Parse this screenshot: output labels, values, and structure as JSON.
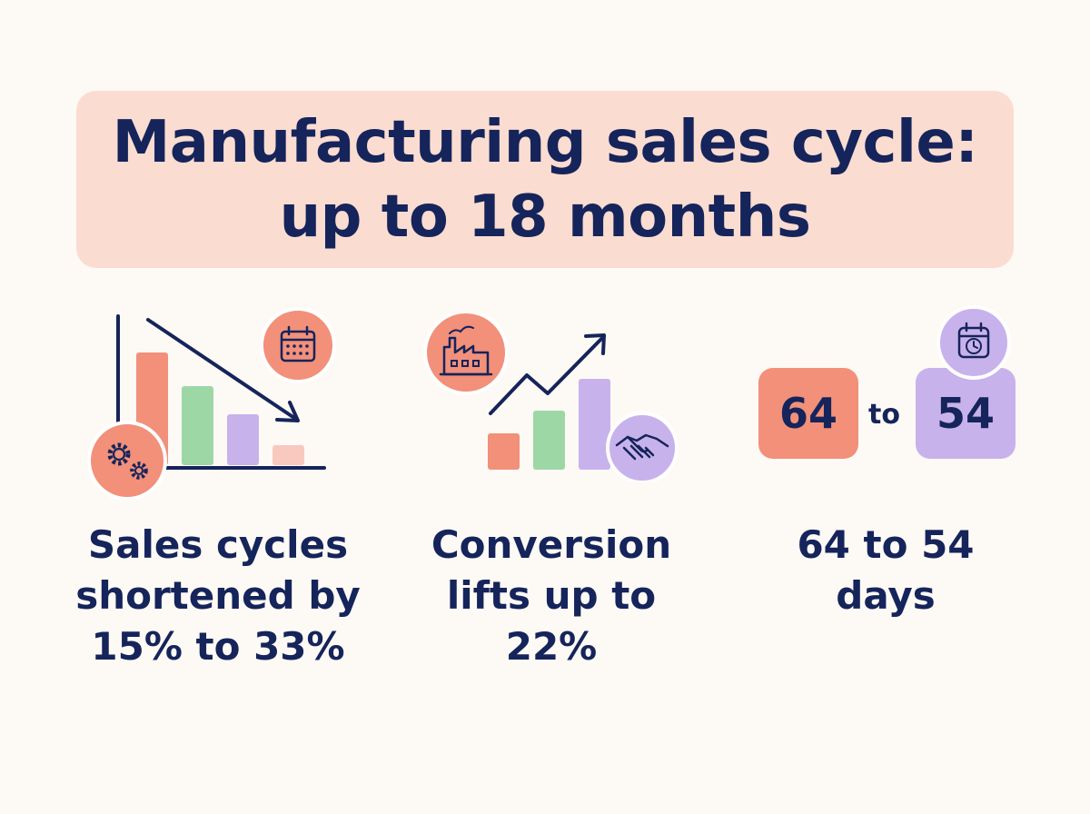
{
  "title": {
    "line1": "Manufacturing sales cycle:",
    "line2": "up to 18 months"
  },
  "panels": [
    {
      "caption": [
        "Sales cycles",
        "shortened by",
        "15% to 33%"
      ],
      "icons": [
        "calendar-icon",
        "gears-icon",
        "trend-down-arrow-icon"
      ]
    },
    {
      "caption": [
        "Conversion",
        "lifts up to",
        "22%"
      ],
      "icons": [
        "factory-icon",
        "handshake-icon",
        "trend-up-arrow-icon"
      ]
    },
    {
      "caption": [
        "64 to 54",
        "days"
      ],
      "icons": [
        "clock-calendar-icon"
      ],
      "from_value": "64",
      "to_word": "to",
      "to_value": "54"
    }
  ],
  "colors": {
    "navy": "#15245a",
    "coral": "#f2907a",
    "green": "#9dd7a6",
    "lavender": "#c8b2ec",
    "title_bg": "#fbdcd1",
    "background": "#fdf9f5"
  }
}
